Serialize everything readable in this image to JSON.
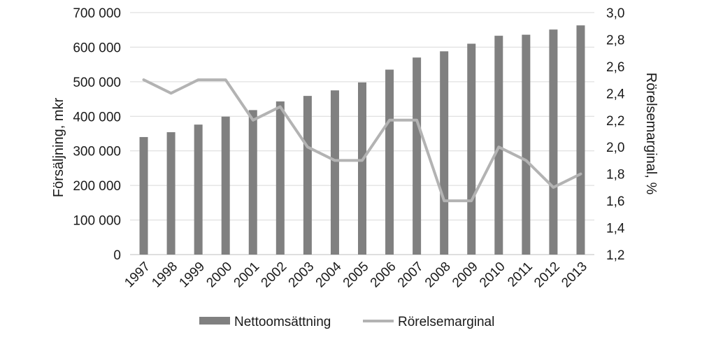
{
  "chart_data": {
    "type": "bar+line",
    "categories": [
      "1997",
      "1998",
      "1999",
      "2000",
      "2001",
      "2002",
      "2003",
      "2004",
      "2005",
      "2006",
      "2007",
      "2008",
      "2009",
      "2010",
      "2011",
      "2012",
      "2013"
    ],
    "series": [
      {
        "name": "Nettoomsättning",
        "type": "bar",
        "axis": "left",
        "color": "#808080",
        "values": [
          340000,
          354000,
          376000,
          399000,
          418000,
          443000,
          459000,
          475000,
          498000,
          535000,
          570000,
          588000,
          610000,
          633000,
          636000,
          651000,
          663000
        ]
      },
      {
        "name": "Rörelsemarginal",
        "type": "line",
        "axis": "right",
        "color": "#b3b3b3",
        "values": [
          2.5,
          2.4,
          2.5,
          2.5,
          2.2,
          2.3,
          2.0,
          1.9,
          1.9,
          2.2,
          2.2,
          1.6,
          1.6,
          2.0,
          1.9,
          1.7,
          1.8
        ]
      }
    ],
    "ylabel": "Försäljning, mkr",
    "ylabel_right": "Rörelsemarginal, %",
    "ylim": [
      0,
      700000
    ],
    "yticks": [
      "0",
      "100 000",
      "200 000",
      "300 000",
      "400 000",
      "500 000",
      "600 000",
      "700 000"
    ],
    "ylim_right": [
      1.2,
      3.0
    ],
    "yticks_right": [
      "1,2",
      "1,4",
      "1,6",
      "1,8",
      "2,0",
      "2,2",
      "2,4",
      "2,6",
      "2,8",
      "3,0"
    ],
    "grid": true,
    "legend_position": "bottom"
  }
}
